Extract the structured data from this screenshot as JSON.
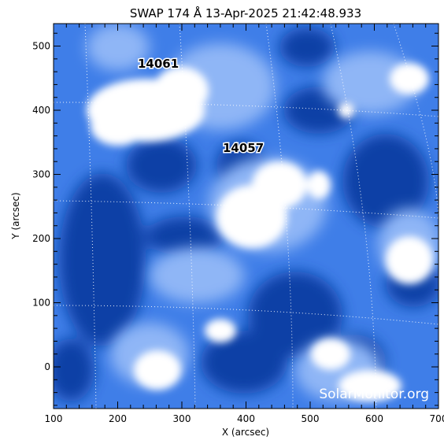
{
  "title": "SWAP 174 Å 13-Apr-2025 21:42:48.933",
  "x_axis": {
    "label": "X (arcsec)",
    "ticks": [
      "100",
      "200",
      "300",
      "400",
      "500",
      "600",
      "700"
    ],
    "range": [
      100,
      700
    ]
  },
  "y_axis": {
    "label": "Y (arcsec)",
    "ticks": [
      "0",
      "100",
      "200",
      "300",
      "400",
      "500"
    ],
    "range": [
      -65,
      535
    ]
  },
  "regions": [
    {
      "number": "14061",
      "x_arcsec": 270,
      "y_arcsec": 475
    },
    {
      "number": "14057",
      "x_arcsec": 395,
      "y_arcsec": 335
    }
  ],
  "watermark": "SolarMonitor.org",
  "colors": {
    "dark_blue": "#0b3fa6",
    "mid_blue": "#3f7ee8",
    "light_blue": "#8fb6f6",
    "white": "#ffffff",
    "grid": "#ffffff"
  }
}
